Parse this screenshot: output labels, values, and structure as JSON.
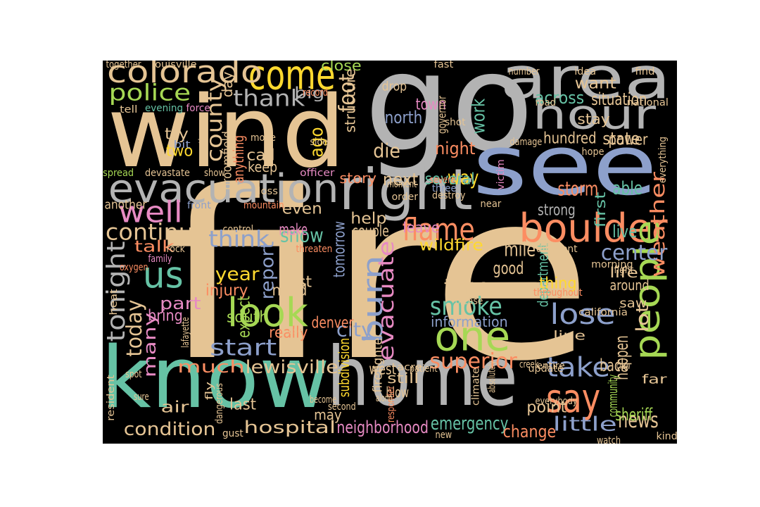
{
  "palette": {
    "tan": "#e5c494",
    "gray": "#b3b3b3",
    "blue": "#8da0cb",
    "green": "#a6d854",
    "teal": "#66c2a5",
    "orange": "#fc8d62",
    "pink": "#e78ac3",
    "yellow": "#ffd92f"
  },
  "words": [
    {
      "text": "fire",
      "color": "tan"
    },
    {
      "text": "go",
      "color": "gray"
    },
    {
      "text": "wind",
      "color": "tan"
    },
    {
      "text": "see",
      "color": "blue"
    },
    {
      "text": "know",
      "color": "teal"
    },
    {
      "text": "home",
      "color": "gray"
    },
    {
      "text": "area",
      "color": "gray"
    },
    {
      "text": "right",
      "color": "gray"
    },
    {
      "text": "evacuation",
      "color": "gray"
    },
    {
      "text": "come",
      "color": "yellow"
    },
    {
      "text": "colorado",
      "color": "tan"
    },
    {
      "text": "hour",
      "color": "gray"
    },
    {
      "text": "boulder",
      "color": "orange"
    },
    {
      "text": "people",
      "color": "green"
    },
    {
      "text": "one",
      "color": "green"
    },
    {
      "text": "say",
      "color": "orange"
    },
    {
      "text": "look",
      "color": "green"
    },
    {
      "text": "us",
      "color": "teal"
    },
    {
      "text": "burn",
      "color": "blue"
    },
    {
      "text": "evacuate",
      "color": "pink"
    },
    {
      "text": "well",
      "color": "pink"
    },
    {
      "text": "police",
      "color": "green"
    },
    {
      "text": "flame",
      "color": "orange"
    },
    {
      "text": "report",
      "color": "blue"
    },
    {
      "text": "tonight",
      "color": "gray"
    },
    {
      "text": "thank",
      "color": "gray"
    },
    {
      "text": "county",
      "color": "tan"
    },
    {
      "text": "weather",
      "color": "orange"
    },
    {
      "text": "smoke",
      "color": "teal"
    },
    {
      "text": "lose",
      "color": "blue"
    },
    {
      "text": "take",
      "color": "blue"
    },
    {
      "text": "continue",
      "color": "tan"
    },
    {
      "text": "start",
      "color": "blue"
    },
    {
      "text": "lewisville",
      "color": "tan"
    },
    {
      "text": "superior",
      "color": "orange"
    },
    {
      "text": "time",
      "color": "tan"
    },
    {
      "text": "center",
      "color": "blue"
    },
    {
      "text": "way",
      "color": "yellow"
    },
    {
      "text": "think",
      "color": "blue"
    },
    {
      "text": "hospital",
      "color": "tan"
    },
    {
      "text": "neighborhood",
      "color": "pink"
    },
    {
      "text": "condition",
      "color": "tan"
    },
    {
      "text": "today",
      "color": "tan"
    },
    {
      "text": "many",
      "color": "pink"
    },
    {
      "text": "year",
      "color": "yellow"
    },
    {
      "text": "news",
      "color": "tan"
    },
    {
      "text": "work",
      "color": "teal"
    },
    {
      "text": "little",
      "color": "blue"
    },
    {
      "text": "emergency",
      "color": "teal"
    },
    {
      "text": "happen",
      "color": "tan"
    },
    {
      "text": "lot",
      "color": "tan"
    },
    {
      "text": "city",
      "color": "blue"
    },
    {
      "text": "tomorrow",
      "color": "blue"
    },
    {
      "text": "much",
      "color": "orange"
    },
    {
      "text": "snow",
      "color": "teal"
    },
    {
      "text": "mile",
      "color": "tan"
    },
    {
      "text": "wildfire",
      "color": "yellow"
    },
    {
      "text": "die",
      "color": "tan"
    },
    {
      "text": "north",
      "color": "blue"
    },
    {
      "text": "department",
      "color": "teal"
    },
    {
      "text": "night",
      "color": "orange"
    },
    {
      "text": "storm",
      "color": "orange"
    },
    {
      "text": "able",
      "color": "teal"
    },
    {
      "text": "next",
      "color": "tan"
    },
    {
      "text": "several",
      "color": "teal"
    },
    {
      "text": "across",
      "color": "teal"
    },
    {
      "text": "situation",
      "color": "tan"
    },
    {
      "text": "hundred",
      "color": "tan"
    },
    {
      "text": "state",
      "color": "tan"
    },
    {
      "text": "part",
      "color": "pink"
    },
    {
      "text": "change",
      "color": "orange"
    },
    {
      "text": "sheriff",
      "color": "green"
    },
    {
      "text": "information",
      "color": "blue"
    },
    {
      "text": "good",
      "color": "tan"
    },
    {
      "text": "east",
      "color": "tan"
    },
    {
      "text": "south",
      "color": "green"
    },
    {
      "text": "thing",
      "color": "yellow"
    },
    {
      "text": "back",
      "color": "tan"
    },
    {
      "text": "community",
      "color": "green"
    },
    {
      "text": "first",
      "color": "teal"
    },
    {
      "text": "strong",
      "color": "gray"
    },
    {
      "text": "live",
      "color": "teal"
    },
    {
      "text": "even",
      "color": "tan"
    },
    {
      "text": "help",
      "color": "tan"
    },
    {
      "text": "couple",
      "color": "tan"
    },
    {
      "text": "really",
      "color": "orange"
    },
    {
      "text": "need",
      "color": "tan"
    },
    {
      "text": "make",
      "color": "pink"
    },
    {
      "text": "want",
      "color": "tan"
    },
    {
      "text": "talk",
      "color": "orange"
    },
    {
      "text": "injury",
      "color": "orange"
    },
    {
      "text": "bring",
      "color": "pink"
    },
    {
      "text": "two",
      "color": "yellow"
    },
    {
      "text": "try",
      "color": "tan"
    },
    {
      "text": "call",
      "color": "tan"
    },
    {
      "text": "keep",
      "color": "tan"
    },
    {
      "text": "big",
      "color": "gray"
    },
    {
      "text": "day",
      "color": "tan"
    },
    {
      "text": "foot",
      "color": "tan"
    },
    {
      "text": "close",
      "color": "green"
    },
    {
      "text": "ago",
      "color": "yellow"
    },
    {
      "text": "town",
      "color": "pink"
    },
    {
      "text": "stay",
      "color": "tan"
    },
    {
      "text": "power",
      "color": "tan"
    },
    {
      "text": "story",
      "color": "orange"
    },
    {
      "text": "another",
      "color": "tan"
    },
    {
      "text": "leave",
      "color": "pink"
    },
    {
      "text": "denver",
      "color": "orange"
    },
    {
      "text": "west",
      "color": "tan"
    },
    {
      "text": "still",
      "color": "tan"
    },
    {
      "text": "expect",
      "color": "green"
    },
    {
      "text": "last",
      "color": "tan"
    },
    {
      "text": "air",
      "color": "tan"
    },
    {
      "text": "may",
      "color": "tan"
    },
    {
      "text": "blow",
      "color": "tan"
    },
    {
      "text": "point",
      "color": "tan"
    },
    {
      "text": "life",
      "color": "tan"
    },
    {
      "text": "around",
      "color": "tan"
    },
    {
      "text": "saw",
      "color": "tan"
    },
    {
      "text": "far",
      "color": "tan"
    },
    {
      "text": "break",
      "color": "tan"
    },
    {
      "text": "line",
      "color": "tan"
    },
    {
      "text": "anything",
      "color": "orange"
    },
    {
      "text": "broomfield",
      "color": "tan"
    },
    {
      "text": "structure",
      "color": "tan"
    },
    {
      "text": "subdivision",
      "color": "yellow"
    },
    {
      "text": "firefighter",
      "color": "tan"
    },
    {
      "text": "together",
      "color": "tan"
    },
    {
      "text": "louisville",
      "color": "tan"
    },
    {
      "text": "fast",
      "color": "tan"
    },
    {
      "text": "number",
      "color": "tan"
    },
    {
      "text": "idea",
      "color": "tan"
    },
    {
      "text": "find",
      "color": "tan"
    },
    {
      "text": "record",
      "color": "orange"
    },
    {
      "text": "drop",
      "color": "tan"
    },
    {
      "text": "tell",
      "color": "tan"
    },
    {
      "text": "evening",
      "color": "teal"
    },
    {
      "text": "force",
      "color": "pink"
    },
    {
      "text": "governor",
      "color": "tan"
    },
    {
      "text": "road",
      "color": "tan"
    },
    {
      "text": "national",
      "color": "tan"
    },
    {
      "text": "shot",
      "color": "tan"
    },
    {
      "text": "damage",
      "color": "tan"
    },
    {
      "text": "question",
      "color": "tan"
    },
    {
      "text": "bit",
      "color": "blue"
    },
    {
      "text": "move",
      "color": "tan"
    },
    {
      "text": "side",
      "color": "tan"
    },
    {
      "text": "hope",
      "color": "tan"
    },
    {
      "text": "everything",
      "color": "tan"
    },
    {
      "text": "spread",
      "color": "green"
    },
    {
      "text": "devastate",
      "color": "tan"
    },
    {
      "text": "show",
      "color": "tan"
    },
    {
      "text": "officer",
      "color": "pink"
    },
    {
      "text": "victim",
      "color": "pink"
    },
    {
      "text": "severe",
      "color": "orange"
    },
    {
      "text": "moment",
      "color": "tan"
    },
    {
      "text": "order",
      "color": "tan"
    },
    {
      "text": "three",
      "color": "blue"
    },
    {
      "text": "destroy",
      "color": "tan"
    },
    {
      "text": "loss",
      "color": "tan"
    },
    {
      "text": "front",
      "color": "blue"
    },
    {
      "text": "mountain",
      "color": "orange"
    },
    {
      "text": "near",
      "color": "tan"
    },
    {
      "text": "control",
      "color": "tan"
    },
    {
      "text": "threaten",
      "color": "orange"
    },
    {
      "text": "different",
      "color": "tan"
    },
    {
      "text": "rock",
      "color": "tan"
    },
    {
      "text": "family",
      "color": "pink"
    },
    {
      "text": "oxygen",
      "color": "orange"
    },
    {
      "text": "morning",
      "color": "tan"
    },
    {
      "text": "fight",
      "color": "tan"
    },
    {
      "text": "throughout",
      "color": "orange"
    },
    {
      "text": "please",
      "color": "tan"
    },
    {
      "text": "heat",
      "color": "tan"
    },
    {
      "text": "lafayette",
      "color": "tan"
    },
    {
      "text": "use",
      "color": "tan"
    },
    {
      "text": "california",
      "color": "tan"
    },
    {
      "text": "creek",
      "color": "tan"
    },
    {
      "text": "entire",
      "color": "tan"
    },
    {
      "text": "acre",
      "color": "tan"
    },
    {
      "text": "patient",
      "color": "tan"
    },
    {
      "text": "climate",
      "color": "tan"
    },
    {
      "text": "update",
      "color": "tan"
    },
    {
      "text": "crew",
      "color": "tan"
    },
    {
      "text": "absolutely",
      "color": "tan"
    },
    {
      "text": "everybody",
      "color": "tan"
    },
    {
      "text": "responder",
      "color": "orange"
    },
    {
      "text": "along",
      "color": "tan"
    },
    {
      "text": "become",
      "color": "tan"
    },
    {
      "text": "second",
      "color": "tan"
    },
    {
      "text": "resident",
      "color": "tan"
    },
    {
      "text": "spot",
      "color": "tan"
    },
    {
      "text": "sure",
      "color": "tan"
    },
    {
      "text": "fly",
      "color": "tan"
    },
    {
      "text": "dangerous",
      "color": "tan"
    },
    {
      "text": "gust",
      "color": "tan"
    },
    {
      "text": "new",
      "color": "tan"
    },
    {
      "text": "watch",
      "color": "tan"
    },
    {
      "text": "kind",
      "color": "tan"
    }
  ]
}
